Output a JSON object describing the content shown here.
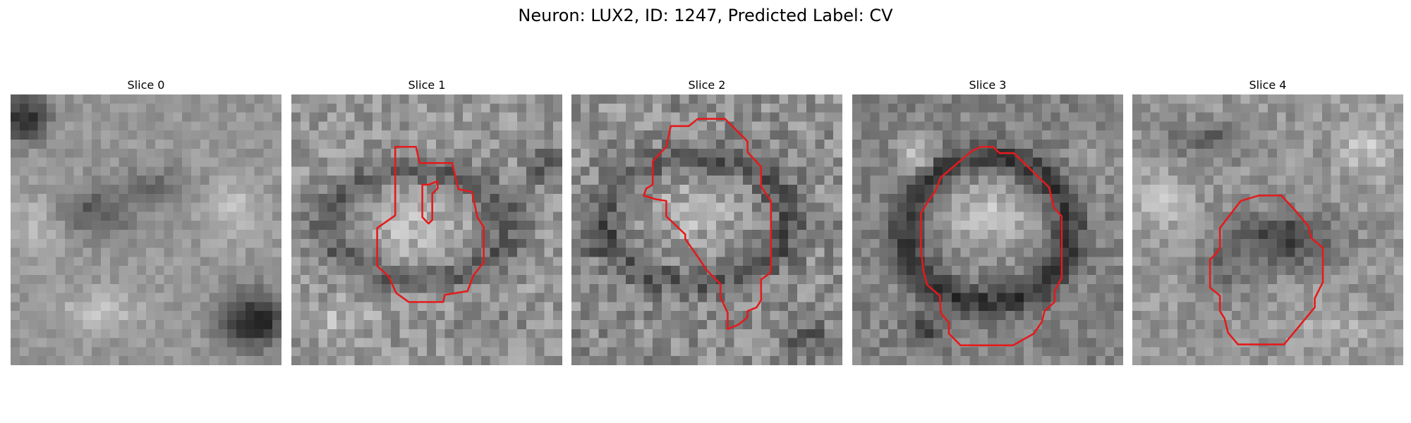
{
  "figure": {
    "title": "Neuron: LUX2, ID: 1247, Predicted Label: CV"
  },
  "colors": {
    "contour": "#e41a1c",
    "background": "#ffffff"
  },
  "panels": [
    {
      "title": "Slice 0",
      "seed": 11,
      "has_contour": false
    },
    {
      "title": "Slice 1",
      "seed": 23,
      "has_contour": true
    },
    {
      "title": "Slice 2",
      "seed": 37,
      "has_contour": true
    },
    {
      "title": "Slice 3",
      "seed": 53,
      "has_contour": true
    },
    {
      "title": "Slice 4",
      "seed": 71,
      "has_contour": true
    }
  ]
}
